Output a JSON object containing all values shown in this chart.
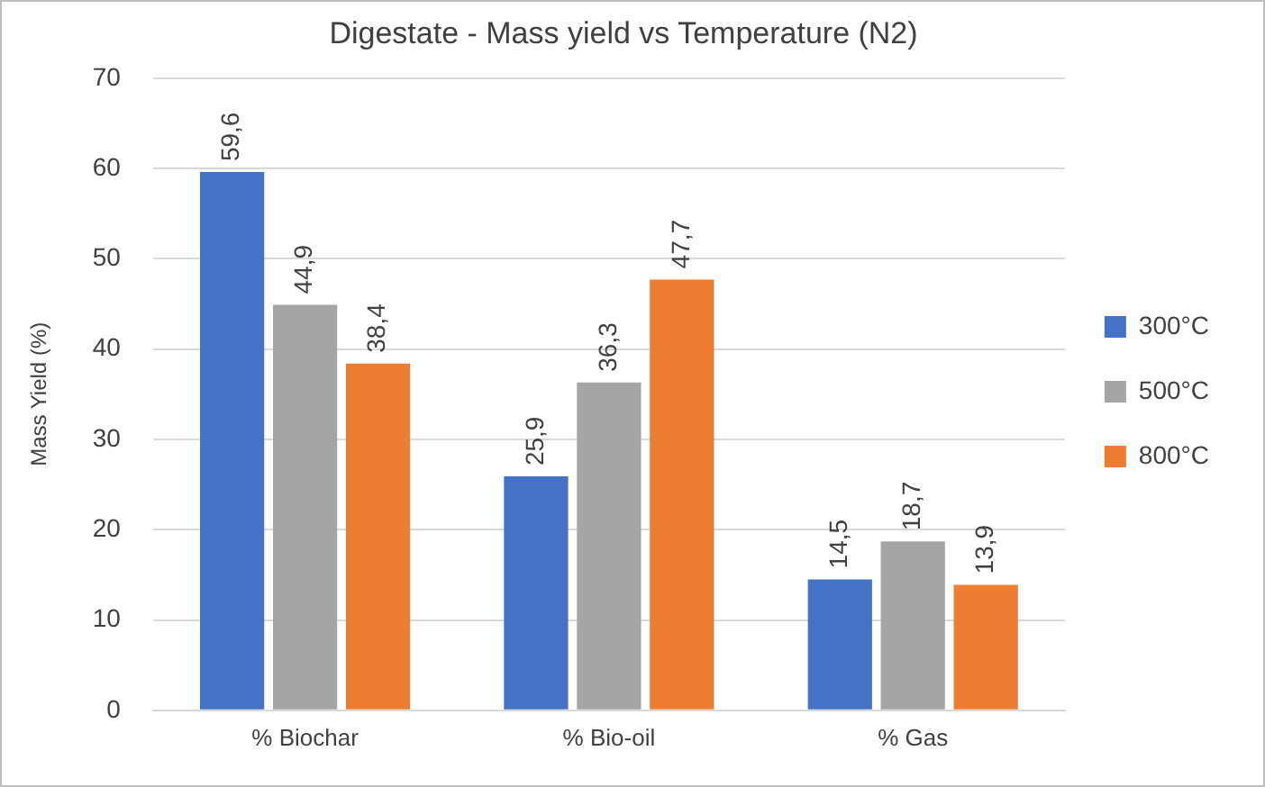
{
  "chart_data": {
    "type": "bar",
    "title": "Digestate - Mass yield vs Temperature (N2)",
    "ylabel": "Mass Yield (%)",
    "categories": [
      "% Biochar",
      "% Bio-oil",
      "% Gas"
    ],
    "series": [
      {
        "name": "300°C",
        "color": "#4472c4",
        "values": [
          59.6,
          25.9,
          14.5
        ],
        "value_labels": [
          "59,6",
          "25,9",
          "14,5"
        ]
      },
      {
        "name": "500°C",
        "color": "#a5a5a5",
        "values": [
          44.9,
          36.3,
          18.7
        ],
        "value_labels": [
          "44,9",
          "36,3",
          "18,7"
        ]
      },
      {
        "name": "800°C",
        "color": "#ed7d31",
        "values": [
          38.4,
          47.7,
          13.9
        ],
        "value_labels": [
          "38,4",
          "47,7",
          "13,9"
        ]
      }
    ],
    "ylim": [
      0,
      70
    ],
    "yticks": [
      0,
      10,
      20,
      30,
      40,
      50,
      60,
      70
    ],
    "grid": "y",
    "legend": "right"
  }
}
